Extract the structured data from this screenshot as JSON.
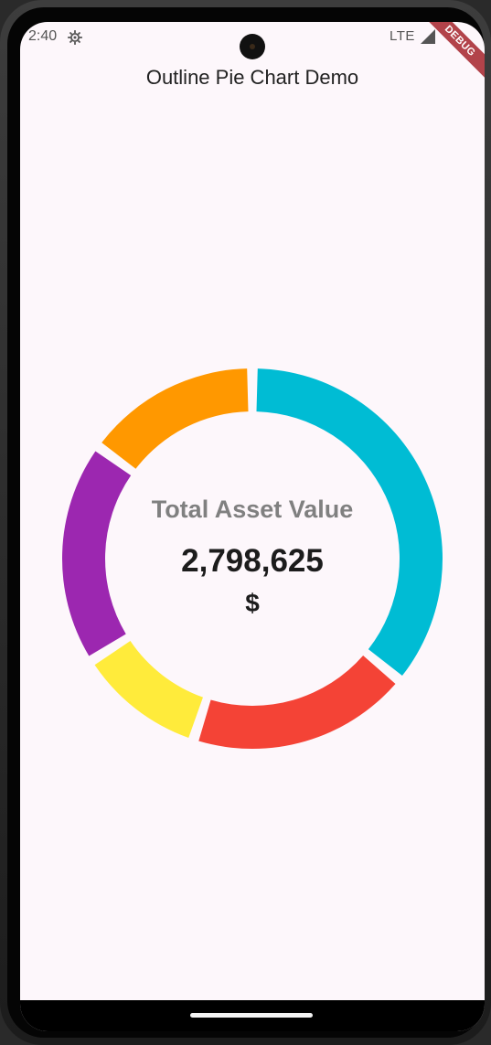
{
  "status_bar": {
    "time": "2:40",
    "network": "LTE",
    "debug_banner": "DEBUG",
    "icons": [
      "gear-icon",
      "signal-icon"
    ]
  },
  "app_bar": {
    "title": "Outline Pie Chart Demo"
  },
  "chart_data": {
    "type": "pie",
    "style": "donut",
    "center_title": "Total Asset Value",
    "center_value": "2,798,625",
    "center_unit": "$",
    "slices": [
      {
        "color": "#00bcd4",
        "fraction": 0.36
      },
      {
        "color": "#f44336",
        "fraction": 0.19
      },
      {
        "color": "#ffeb3b",
        "fraction": 0.11
      },
      {
        "color": "#9c27b0",
        "fraction": 0.19
      },
      {
        "color": "#ff9800",
        "fraction": 0.15
      }
    ]
  },
  "colors": {
    "background": "#fdf7fb",
    "center_title": "#808080",
    "center_value": "#1c1c1c"
  }
}
